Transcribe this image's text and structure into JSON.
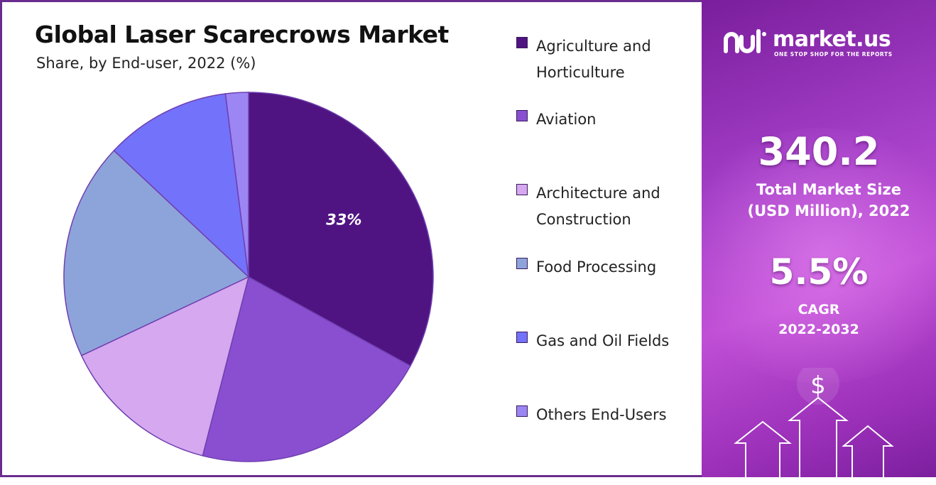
{
  "chart_data": {
    "type": "pie",
    "title": "Global Laser Scarecrows Market",
    "subtitle": "Share, by End-user, 2022 (%)",
    "slices": [
      {
        "label": "Agriculture and Horticulture",
        "value": 33,
        "color": "#4f1482",
        "data_label": "33%"
      },
      {
        "label": "Aviation",
        "value": 21,
        "color": "#8a4fd0",
        "data_label": ""
      },
      {
        "label": "Architecture and Construction",
        "value": 14,
        "color": "#d5a8ef",
        "data_label": ""
      },
      {
        "label": "Food Processing",
        "value": 19,
        "color": "#8da4da",
        "data_label": ""
      },
      {
        "label": "Gas and Oil Fields",
        "value": 11,
        "color": "#7372fb",
        "data_label": ""
      },
      {
        "label": "Others End-Users",
        "value": 2,
        "color": "#9b86f4",
        "data_label": ""
      }
    ],
    "legend_position": "right"
  },
  "legend": {
    "items": [
      {
        "line1": "Agriculture and",
        "line2": "Horticulture",
        "color": "#4f1482"
      },
      {
        "line1": "Aviation",
        "line2": "",
        "color": "#8a4fd0"
      },
      {
        "line1": "Architecture and",
        "line2": "Construction",
        "color": "#d5a8ef"
      },
      {
        "line1": "Food Processing",
        "line2": "",
        "color": "#8da4da"
      },
      {
        "line1": "Gas and Oil Fields",
        "line2": "",
        "color": "#7372fb"
      },
      {
        "line1": "Others End-Users",
        "line2": "",
        "color": "#9b86f4"
      }
    ]
  },
  "panel": {
    "brand_name": "market.us",
    "brand_tagline": "ONE STOP SHOP FOR THE REPORTS",
    "market_size": "340.2",
    "market_size_label_1": "Total Market Size",
    "market_size_label_2": "(USD Million), 2022",
    "cagr": "5.5%",
    "cagr_label_1": "CAGR",
    "cagr_label_2": "2022-2032",
    "currency_symbol": "$",
    "logo_icon": "market-us-logo-icon",
    "growth_icon": "growth-arrows-icon"
  }
}
